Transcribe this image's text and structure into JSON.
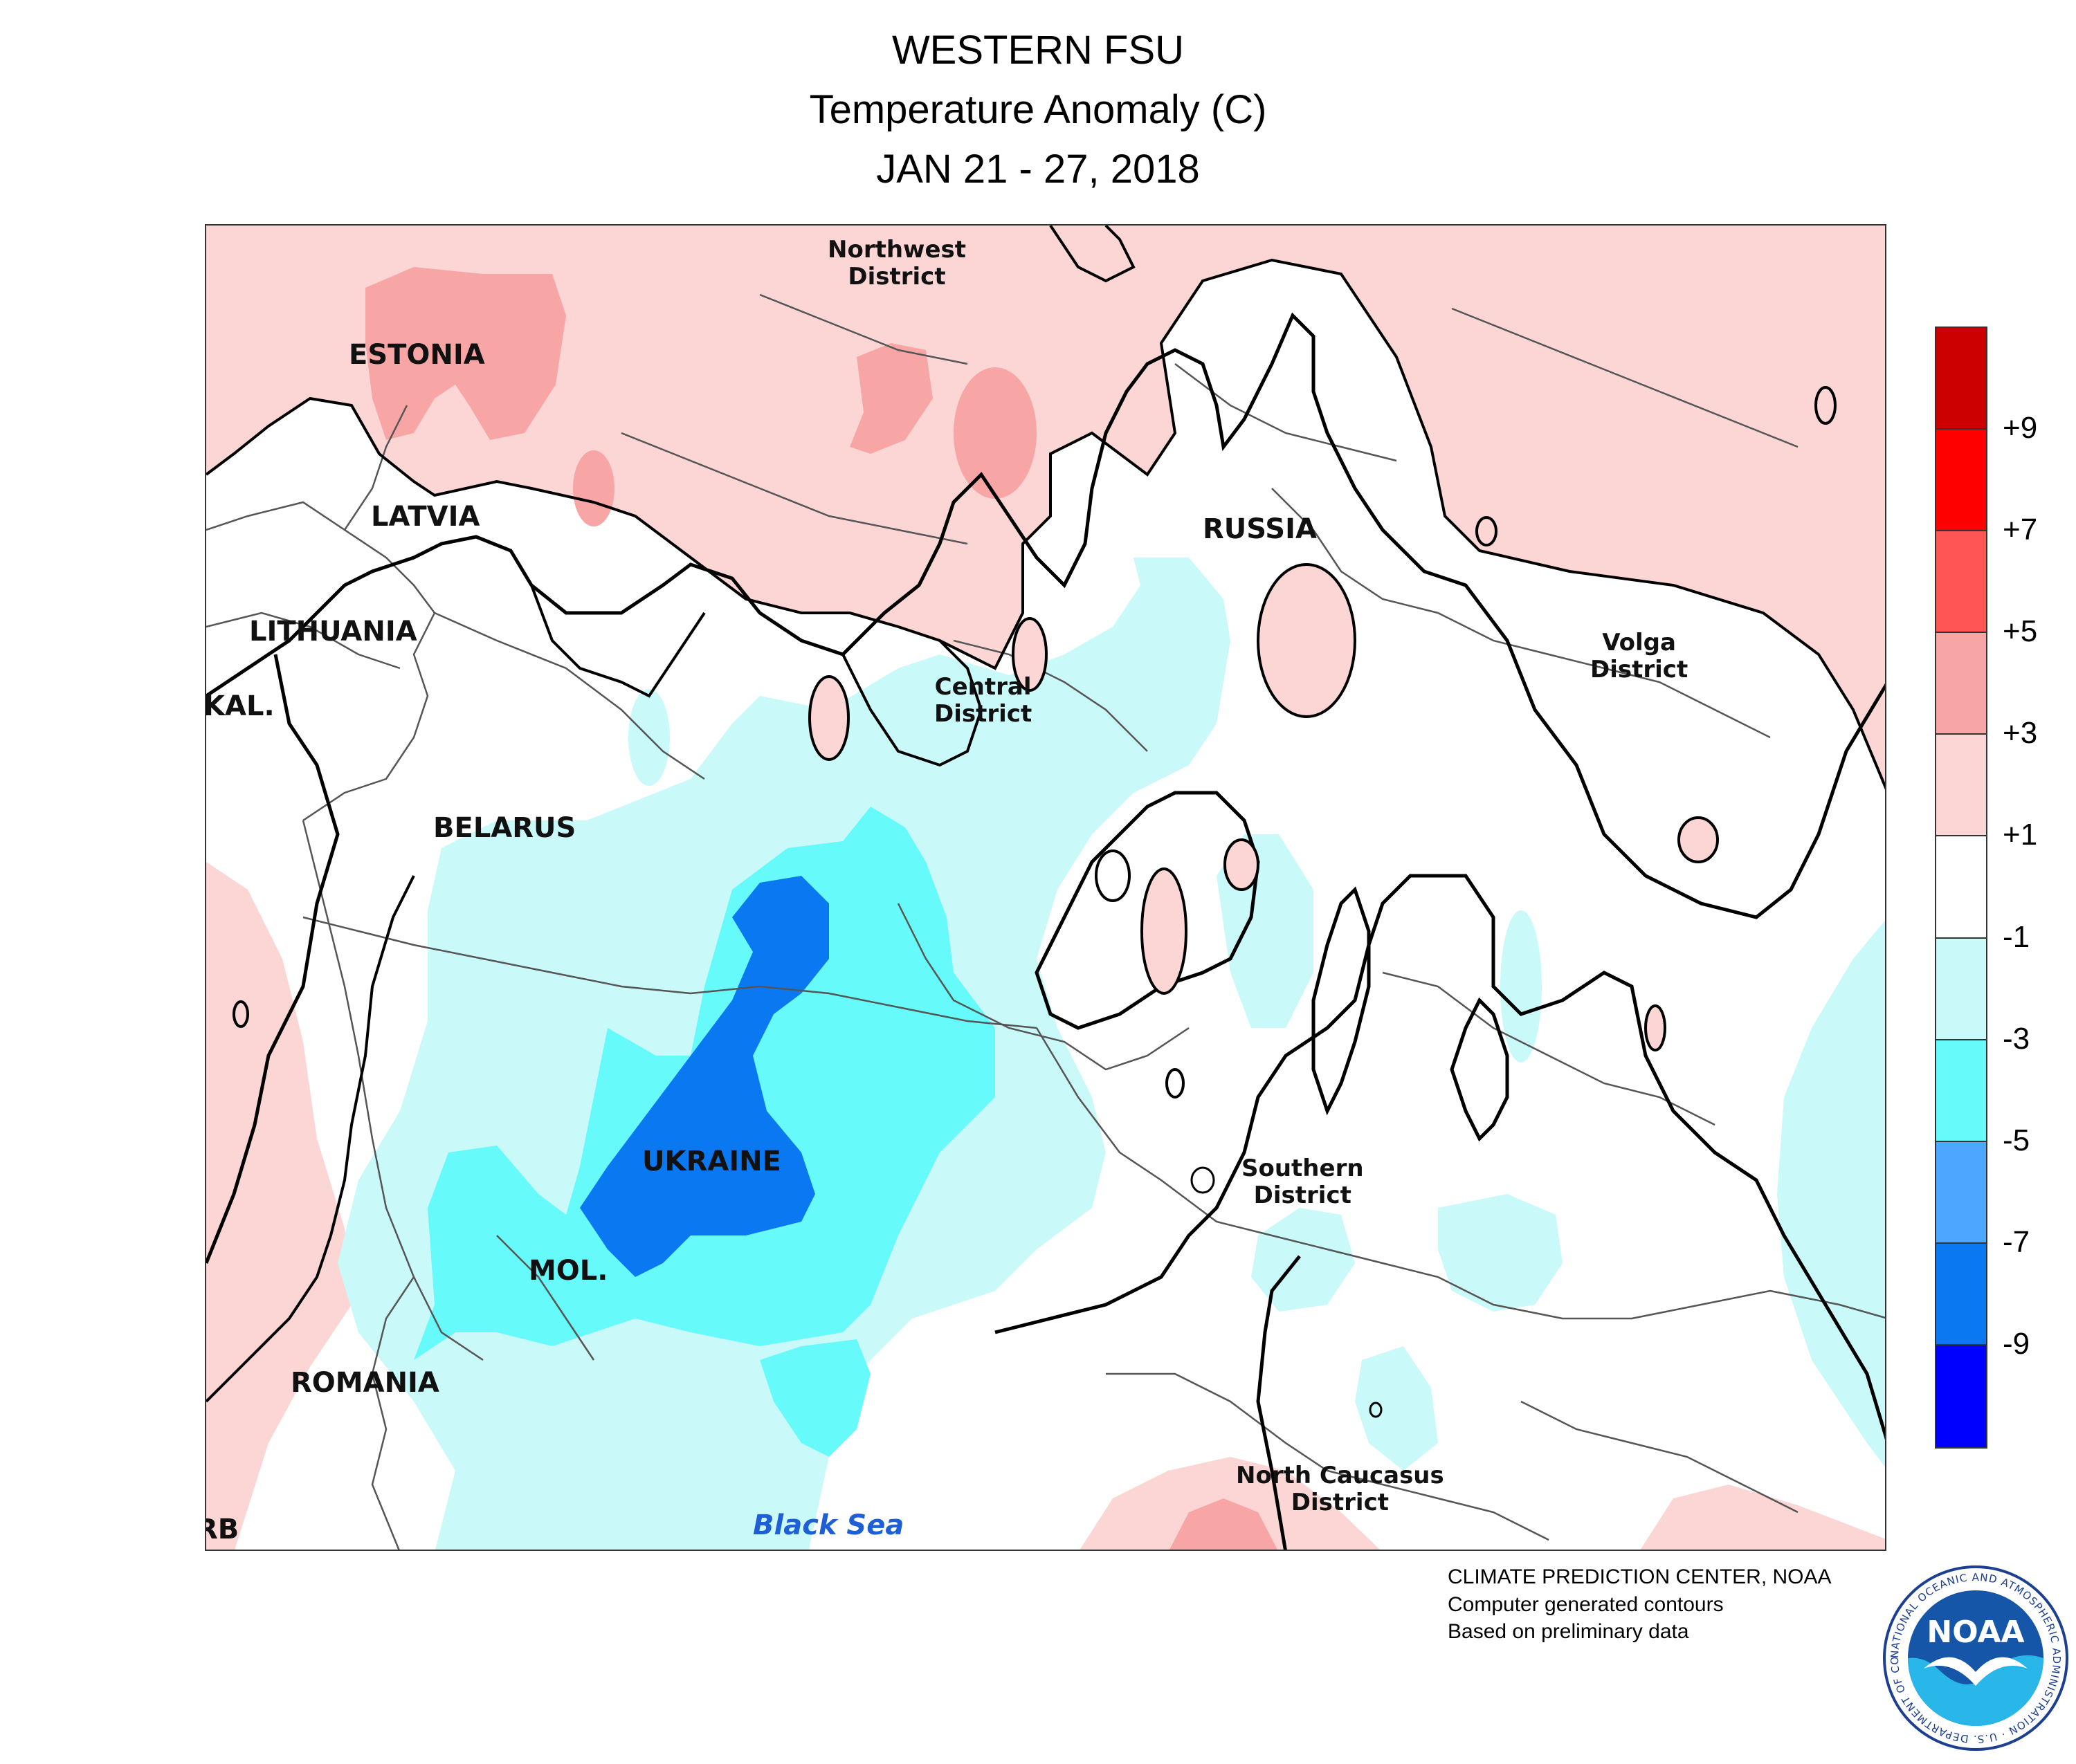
{
  "header": {
    "title_line1": "WESTERN FSU",
    "title_line2": "Temperature Anomaly (C)",
    "title_line3": "JAN 21 - 27, 2018"
  },
  "map": {
    "labels": {
      "estonia": "ESTONIA",
      "latvia": "LATVIA",
      "lithuania": "LITHUANIA",
      "kal": "KAL.",
      "belarus": "BELARUS",
      "ukraine": "UKRAINE",
      "mol": "MOL.",
      "romania": "ROMANIA",
      "rb": "RB",
      "russia": "RUSSIA",
      "northwest_1": "Northwest",
      "northwest_2": "District",
      "central_1": "Central",
      "central_2": "District",
      "volga_1": "Volga",
      "volga_2": "District",
      "southern_1": "Southern",
      "southern_2": "District",
      "ncaucasus_1": "North Caucasus",
      "ncaucasus_2": "District",
      "black_sea": "Black Sea"
    },
    "colors": {
      "anom_plus1_plus3": "#fcd5d5",
      "anom_plus3_plus5": "#f7a5a5",
      "anom_minus1_minus3": "#c9f9f9",
      "anom_minus3_minus5": "#66fafa",
      "anom_minus7_minus9": "#0a78f0",
      "contour_line": "#000000",
      "border_line": "#555555"
    }
  },
  "legend": {
    "ticks": [
      "+9",
      "+7",
      "+5",
      "+3",
      "+1",
      "-1",
      "-3",
      "-5",
      "-7",
      "-9"
    ],
    "colors": [
      "#cc0000",
      "#ff0000",
      "#ff5555",
      "#f7a5a5",
      "#fcd5d5",
      "#ffffff",
      "#c9f9f9",
      "#66fafa",
      "#4da6ff",
      "#0a78f0",
      "#0000ff"
    ]
  },
  "credits": {
    "line1": "CLIMATE PREDICTION CENTER, NOAA",
    "line2": "Computer generated contours",
    "line3": "Based on preliminary data"
  },
  "logo": {
    "text": "NOAA",
    "ring_text": "NATIONAL OCEANIC AND ATMOSPHERIC ADMINISTRATION · U.S. DEPARTMENT OF COMMERCE",
    "icon": "noaa-seagull-logo"
  }
}
